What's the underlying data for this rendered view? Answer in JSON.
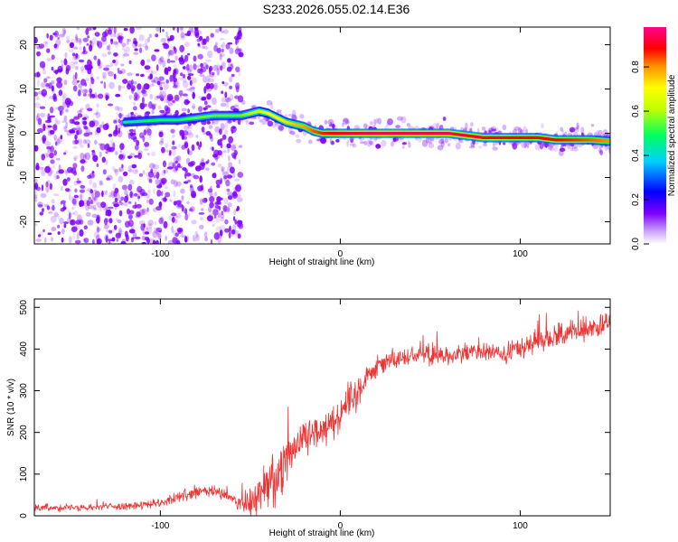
{
  "title": "S233.2026.055.02.14.E36",
  "chart_data": [
    {
      "type": "heatmap",
      "xlabel": "Height of straight line (km)",
      "ylabel": "Frequency (Hz)",
      "xlim": [
        -170,
        150
      ],
      "ylim": [
        -25,
        24
      ],
      "x_ticks": [
        -100,
        0,
        100
      ],
      "y_ticks": [
        -20,
        -10,
        0,
        10,
        20
      ],
      "grid": false,
      "colormap": "rainbow",
      "background_color": "#ffffff",
      "noise_color": "#7f00ff",
      "colorbar": {
        "label": "Normalized spectral amplitude",
        "range": [
          0.0,
          0.98
        ],
        "ticks": [
          "0.0",
          "0.2",
          "0.4",
          "0.6",
          "0.8"
        ],
        "tick_values": [
          0.0,
          0.2,
          0.4,
          0.6,
          0.8
        ]
      },
      "noise_regions": [
        {
          "x_range": [
            -170,
            -55
          ],
          "y_range": [
            -25,
            24
          ],
          "density": "high"
        },
        {
          "x_range": [
            -55,
            150
          ],
          "y_range": [
            -6,
            5
          ],
          "density": "low"
        }
      ],
      "ridge": {
        "description": "frequency peak vs height",
        "x": [
          -120,
          -100,
          -90,
          -80,
          -70,
          -60,
          -55,
          -50,
          -45,
          -40,
          -35,
          -30,
          -25,
          -20,
          -15,
          -10,
          -5,
          0,
          10,
          20,
          30,
          40,
          50,
          60,
          70,
          80,
          90,
          100,
          110,
          120,
          130,
          140,
          150
        ],
        "frequency": [
          2.5,
          3,
          3,
          3.5,
          4,
          4,
          4,
          4.5,
          5,
          4.5,
          3.5,
          2.5,
          2,
          1.5,
          0.5,
          0,
          0,
          0,
          0,
          0,
          0,
          0,
          0,
          0,
          -0.5,
          -1,
          -1,
          -1,
          -1,
          -1.5,
          -1.5,
          -1.5,
          -1.8
        ],
        "amplitude": [
          0.45,
          0.5,
          0.5,
          0.55,
          0.55,
          0.55,
          0.55,
          0.6,
          0.65,
          0.7,
          0.72,
          0.75,
          0.78,
          0.8,
          0.85,
          0.88,
          0.9,
          0.92,
          0.94,
          0.95,
          0.95,
          0.95,
          0.95,
          0.95,
          0.93,
          0.92,
          0.92,
          0.9,
          0.9,
          0.9,
          0.88,
          0.85,
          0.82
        ]
      }
    },
    {
      "type": "line",
      "xlabel": "Height of straight line (km)",
      "ylabel": "SNR (10 * v/v)",
      "xlim": [
        -170,
        150
      ],
      "ylim": [
        0,
        520
      ],
      "x_ticks": [
        -100,
        0,
        100
      ],
      "y_ticks": [
        0,
        100,
        200,
        300,
        400,
        500
      ],
      "grid": false,
      "line_color": "#ee3333",
      "series": [
        {
          "x": [
            -170,
            -150,
            -130,
            -110,
            -100,
            -90,
            -80,
            -70,
            -60,
            -55,
            -50,
            -45,
            -40,
            -35,
            -30,
            -25,
            -20,
            -15,
            -10,
            -5,
            0,
            5,
            10,
            15,
            20,
            30,
            40,
            50,
            60,
            70,
            80,
            90,
            100,
            110,
            120,
            130,
            140,
            150
          ],
          "y": [
            20,
            20,
            22,
            25,
            30,
            45,
            55,
            60,
            40,
            30,
            25,
            50,
            80,
            100,
            150,
            165,
            185,
            200,
            215,
            225,
            245,
            275,
            300,
            340,
            360,
            375,
            385,
            390,
            385,
            390,
            395,
            385,
            400,
            425,
            430,
            440,
            450,
            460
          ],
          "noise_amplitude": [
            10,
            10,
            10,
            10,
            12,
            15,
            18,
            20,
            15,
            20,
            45,
            60,
            80,
            85,
            70,
            55,
            55,
            50,
            50,
            50,
            50,
            45,
            40,
            35,
            30,
            28,
            28,
            28,
            28,
            28,
            30,
            30,
            30,
            30,
            30,
            30,
            30,
            30
          ]
        }
      ]
    }
  ]
}
